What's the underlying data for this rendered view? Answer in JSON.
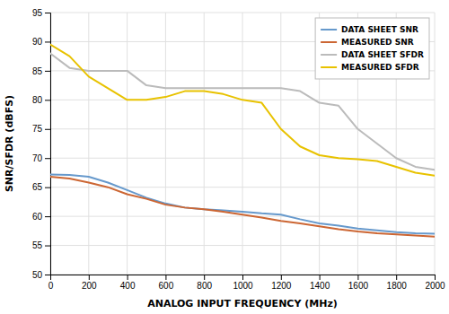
{
  "chart_data": {
    "type": "line",
    "xlabel": "ANALOG INPUT FREQUENCY (MHz)",
    "ylabel": "SNR/SFDR (dBFS)",
    "x": [
      0,
      100,
      200,
      300,
      400,
      500,
      600,
      700,
      800,
      900,
      1000,
      1100,
      1200,
      1300,
      1400,
      1500,
      1600,
      1700,
      1800,
      1900,
      2000
    ],
    "series": [
      {
        "name": "DATA SHEET SNR",
        "color": "#6699cc",
        "values": [
          67.2,
          67.1,
          66.8,
          65.8,
          64.5,
          63.2,
          62.2,
          61.5,
          61.2,
          61.0,
          60.8,
          60.5,
          60.3,
          59.5,
          58.8,
          58.4,
          57.9,
          57.6,
          57.3,
          57.1,
          57.0
        ]
      },
      {
        "name": "MEASURED SNR",
        "color": "#cc6633",
        "values": [
          66.8,
          66.5,
          65.8,
          65.0,
          63.8,
          63.0,
          62.0,
          61.5,
          61.2,
          60.8,
          60.3,
          59.8,
          59.2,
          58.8,
          58.3,
          57.8,
          57.4,
          57.1,
          56.9,
          56.7,
          56.5
        ]
      },
      {
        "name": "DATA SHEET SFDR",
        "color": "#bbbbbb",
        "values": [
          88.0,
          85.5,
          85.0,
          85.0,
          85.0,
          82.5,
          82.0,
          82.0,
          82.0,
          82.0,
          82.0,
          82.0,
          82.0,
          81.5,
          79.5,
          79.0,
          75.0,
          72.5,
          70.0,
          68.5,
          68.0
        ]
      },
      {
        "name": "MEASURED SFDR",
        "color": "#e8c200",
        "values": [
          89.5,
          87.5,
          84.0,
          82.0,
          80.0,
          80.0,
          80.5,
          81.5,
          81.5,
          81.0,
          80.0,
          79.5,
          75.0,
          72.0,
          70.5,
          70.0,
          69.8,
          69.5,
          68.5,
          67.5,
          67.0
        ]
      }
    ],
    "xlim": [
      0,
      2000
    ],
    "ylim": [
      50,
      95
    ],
    "xticks": [
      0,
      200,
      400,
      600,
      800,
      1000,
      1200,
      1400,
      1600,
      1800,
      2000
    ],
    "yticks": [
      50,
      55,
      60,
      65,
      70,
      75,
      80,
      85,
      90,
      95
    ],
    "grid": true,
    "legend": "upper right"
  }
}
